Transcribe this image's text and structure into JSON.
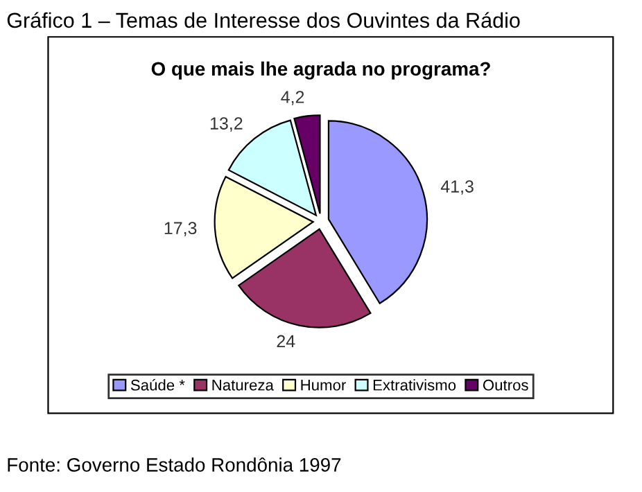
{
  "chart_data": {
    "type": "pie",
    "title": "O que mais lhe agrada no programa?",
    "subtitle": "Gráfico 1 – Temas de Interesse dos Ouvintes da Rádio",
    "annotations": [
      "Fonte: Governo Estado Rondônia 1997"
    ],
    "categories": [
      "Saúde *",
      "Natureza",
      "Humor",
      "Extrativismo",
      "Outros"
    ],
    "values": [
      41.3,
      24,
      17.3,
      13.2,
      4.2
    ],
    "colors": [
      "#9999ff",
      "#993366",
      "#ffffcc",
      "#ccffff",
      "#660066"
    ],
    "value_labels": [
      "41,3",
      "24",
      "17,3",
      "13,2",
      "4,2"
    ],
    "legend": "bottom"
  }
}
